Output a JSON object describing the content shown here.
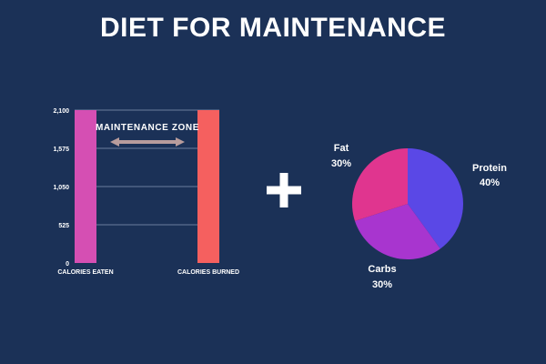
{
  "title": "DIET FOR MAINTENANCE",
  "operator": "+",
  "colors": {
    "background": "#1b3157",
    "eaten_bar": "#d54fb3",
    "burned_bar": "#f5605f",
    "arrow": "#b89c9c",
    "gridline": "#6b7d9c",
    "text": "#ffffff",
    "fat": "#e0358f",
    "protein": "#5a48e6",
    "carbs": "#a835cf"
  },
  "chart_data": [
    {
      "type": "bar",
      "categories": [
        "CALORIES EATEN",
        "CALORIES BURNED"
      ],
      "values": [
        2100,
        2100
      ],
      "ylim": [
        0,
        2100
      ],
      "yticks": [
        0,
        525,
        1050,
        1575,
        2100
      ],
      "ytick_labels": [
        "0",
        "525",
        "1,050",
        "1,575",
        "2,100"
      ],
      "grid": true,
      "annotation": "MAINTENANCE ZONE",
      "annotation_style": "double-headed arrow between bars"
    },
    {
      "type": "pie",
      "slices": [
        {
          "label": "Protein",
          "pct_label": "40%",
          "value": 40,
          "color": "#5a48e6"
        },
        {
          "label": "Carbs",
          "pct_label": "30%",
          "value": 30,
          "color": "#a835cf"
        },
        {
          "label": "Fat",
          "pct_label": "30%",
          "value": 30,
          "color": "#e0358f"
        }
      ],
      "start": "12 o'clock",
      "direction": "clockwise"
    }
  ]
}
